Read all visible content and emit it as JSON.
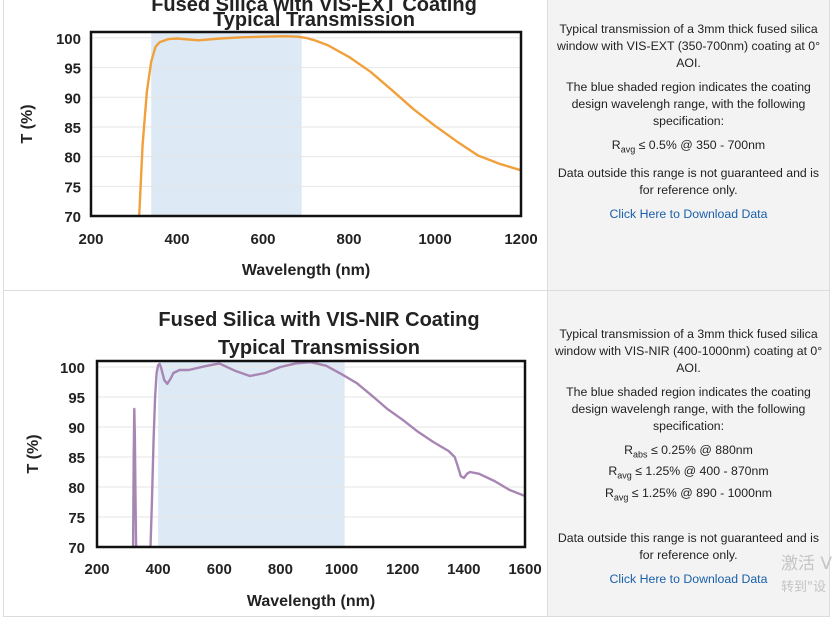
{
  "chart_data": [
    {
      "type": "line",
      "title": "Fused Silica with VIS-EXT Coating",
      "subtitle": "Typical Transmission",
      "xlabel": "Wavelength (nm)",
      "ylabel": "T (%)",
      "xlim": [
        200,
        1200
      ],
      "ylim": [
        70,
        101
      ],
      "xticks": [
        "200",
        "400",
        "600",
        "800",
        "1000",
        "1200"
      ],
      "yticks": [
        "70",
        "75",
        "80",
        "85",
        "90",
        "95",
        "100"
      ],
      "shaded_region": [
        340,
        690
      ],
      "series": [
        {
          "name": "VIS-EXT",
          "color": "#f0a03c",
          "x": [
            312,
            320,
            330,
            340,
            350,
            360,
            380,
            400,
            450,
            500,
            550,
            600,
            650,
            680,
            700,
            720,
            750,
            800,
            850,
            900,
            950,
            1000,
            1050,
            1100,
            1150,
            1200
          ],
          "y": [
            70,
            82,
            91,
            96,
            98.5,
            99.3,
            99.8,
            99.9,
            99.6,
            99.9,
            100.1,
            100.2,
            100.3,
            100.2,
            100.0,
            99.6,
            98.8,
            96.8,
            94.3,
            91.2,
            88.0,
            85.2,
            82.6,
            80.2,
            78.8,
            77.7
          ]
        }
      ]
    },
    {
      "type": "line",
      "title": "Fused Silica with VIS-NIR Coating",
      "subtitle": "Typical Transmission",
      "xlabel": "Wavelength (nm)",
      "ylabel": "T (%)",
      "xlim": [
        200,
        1600
      ],
      "ylim": [
        70,
        101
      ],
      "xticks": [
        "200",
        "400",
        "600",
        "800",
        "1000",
        "1200",
        "1400",
        "1600"
      ],
      "yticks": [
        "70",
        "75",
        "80",
        "85",
        "90",
        "95",
        "100"
      ],
      "shaded_region": [
        400,
        1010
      ],
      "series": [
        {
          "name": "VIS-NIR",
          "color": "#a886b4",
          "x": [
            318,
            320,
            322,
            324,
            326,
            328,
            330,
            375,
            380,
            385,
            390,
            395,
            400,
            405,
            410,
            420,
            430,
            440,
            450,
            470,
            500,
            550,
            600,
            650,
            700,
            750,
            800,
            850,
            900,
            950,
            1000,
            1050,
            1100,
            1150,
            1200,
            1250,
            1300,
            1350,
            1370,
            1380,
            1390,
            1400,
            1410,
            1420,
            1450,
            1500,
            1550,
            1600
          ],
          "y": [
            70,
            85,
            93,
            88,
            78,
            70,
            70,
            70,
            78,
            88,
            95,
            99,
            100.3,
            100.5,
            99.8,
            97.8,
            97.2,
            98.0,
            99.0,
            99.5,
            99.5,
            100.1,
            100.6,
            99.4,
            98.5,
            99.0,
            100.0,
            100.6,
            100.8,
            100.2,
            98.8,
            97.3,
            95.2,
            93.0,
            91.2,
            89.2,
            87.5,
            86.0,
            85.0,
            83.5,
            81.8,
            81.5,
            82.2,
            82.5,
            82.2,
            81.0,
            79.5,
            78.5
          ]
        }
      ]
    }
  ],
  "panels": [
    {
      "description": "Typical transmission of a 3mm thick fused silica window with VIS-EXT (350-700nm) coating at 0° AOI.",
      "shaded_note": "The blue shaded region indicates the coating design wavelengh range, with the following specification:",
      "specs": [
        {
          "symbol": "R",
          "sub": "avg",
          "text": "≤ 0.5% @ 350 - 700nm"
        }
      ],
      "disclaimer": "Data outside this range is not guaranteed and is for reference only.",
      "download_link": "Click Here to Download Data"
    },
    {
      "description": "Typical transmission of a 3mm thick fused silica window with VIS-NIR (400-1000nm) coating at 0° AOI.",
      "shaded_note": "The blue shaded region indicates the coating design wavelengh range, with the following specification:",
      "specs": [
        {
          "symbol": "R",
          "sub": "abs",
          "text": "≤ 0.25% @ 880nm"
        },
        {
          "symbol": "R",
          "sub": "avg",
          "text": "≤ 1.25% @ 400 - 870nm"
        },
        {
          "symbol": "R",
          "sub": "avg",
          "text": "≤ 1.25% @ 890 - 1000nm"
        }
      ],
      "disclaimer": "Data outside this range is not guaranteed and is for reference only.",
      "download_link": "Click Here to Download Data"
    }
  ],
  "watermark": {
    "line1": "激活 V",
    "line2": "转到\"设"
  }
}
